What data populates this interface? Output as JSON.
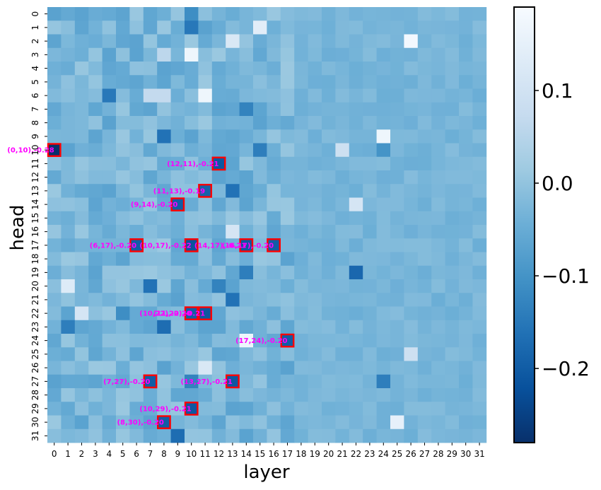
{
  "chart_data": {
    "type": "heatmap",
    "title": "",
    "xlabel": "layer",
    "ylabel": "head",
    "x_ticks": [
      "0",
      "1",
      "2",
      "3",
      "4",
      "5",
      "6",
      "7",
      "8",
      "9",
      "10",
      "11",
      "12",
      "13",
      "14",
      "15",
      "16",
      "17",
      "18",
      "19",
      "20",
      "21",
      "22",
      "23",
      "24",
      "25",
      "26",
      "27",
      "28",
      "29",
      "30",
      "31"
    ],
    "y_ticks": [
      "0",
      "1",
      "2",
      "3",
      "4",
      "5",
      "6",
      "7",
      "8",
      "9",
      "10",
      "11",
      "12",
      "13",
      "14",
      "15",
      "16",
      "17",
      "18",
      "19",
      "20",
      "21",
      "22",
      "23",
      "24",
      "25",
      "26",
      "27",
      "28",
      "29",
      "30",
      "31"
    ],
    "colormap": "Blues_r",
    "vmin": -0.28,
    "vmax": 0.19,
    "colorbar_ticks": [
      {
        "value": 0.1,
        "label": "0.1"
      },
      {
        "value": 0.0,
        "label": "0.0"
      },
      {
        "value": -0.1,
        "label": "−0.1"
      },
      {
        "value": -0.2,
        "label": "−0.2"
      }
    ],
    "base_value": -0.03,
    "highlight_color": "#ff0000",
    "annotation_color": "#ff00ff",
    "notable_cells": [
      {
        "layer": 10,
        "head": 3,
        "value": 0.17
      },
      {
        "layer": 26,
        "head": 2,
        "value": 0.18
      },
      {
        "layer": 11,
        "head": 6,
        "value": 0.17
      },
      {
        "layer": 24,
        "head": 9,
        "value": 0.17
      },
      {
        "layer": 14,
        "head": 24,
        "value": 0.17
      },
      {
        "layer": 25,
        "head": 30,
        "value": 0.15
      },
      {
        "layer": 15,
        "head": 1,
        "value": 0.14
      },
      {
        "layer": 13,
        "head": 2,
        "value": 0.12
      },
      {
        "layer": 1,
        "head": 20,
        "value": 0.13
      },
      {
        "layer": 2,
        "head": 22,
        "value": 0.11
      },
      {
        "layer": 22,
        "head": 14,
        "value": 0.11
      },
      {
        "layer": 26,
        "head": 25,
        "value": 0.09
      },
      {
        "layer": 11,
        "head": 26,
        "value": 0.12
      },
      {
        "layer": 13,
        "head": 16,
        "value": 0.11
      },
      {
        "layer": 21,
        "head": 10,
        "value": 0.09
      },
      {
        "layer": 7,
        "head": 6,
        "value": 0.07
      },
      {
        "layer": 8,
        "head": 6,
        "value": 0.07
      },
      {
        "layer": 8,
        "head": 3,
        "value": 0.06
      },
      {
        "layer": 10,
        "head": 1,
        "value": -0.15
      },
      {
        "layer": 10,
        "head": 0,
        "value": -0.11
      },
      {
        "layer": 4,
        "head": 6,
        "value": -0.15
      },
      {
        "layer": 8,
        "head": 9,
        "value": -0.16
      },
      {
        "layer": 7,
        "head": 20,
        "value": -0.16
      },
      {
        "layer": 8,
        "head": 23,
        "value": -0.17
      },
      {
        "layer": 9,
        "head": 31,
        "value": -0.17
      },
      {
        "layer": 22,
        "head": 19,
        "value": -0.18
      },
      {
        "layer": 13,
        "head": 13,
        "value": -0.16
      },
      {
        "layer": 13,
        "head": 21,
        "value": -0.16
      },
      {
        "layer": 15,
        "head": 10,
        "value": -0.14
      },
      {
        "layer": 1,
        "head": 23,
        "value": -0.14
      },
      {
        "layer": 24,
        "head": 27,
        "value": -0.14
      },
      {
        "layer": 14,
        "head": 19,
        "value": -0.14
      },
      {
        "layer": 12,
        "head": 20,
        "value": -0.13
      },
      {
        "layer": 14,
        "head": 7,
        "value": -0.13
      },
      {
        "layer": 10,
        "head": 27,
        "value": -0.13
      },
      {
        "layer": 5,
        "head": 22,
        "value": -0.11
      },
      {
        "layer": 24,
        "head": 10,
        "value": -0.1
      }
    ],
    "annotated_cells": [
      {
        "layer": 0,
        "head": 10,
        "value": -0.28,
        "label": "(0,10),-0.28"
      },
      {
        "layer": 12,
        "head": 11,
        "value": -0.21,
        "label": "(12,11),-0.21"
      },
      {
        "layer": 11,
        "head": 13,
        "value": -0.19,
        "label": "(11,13),-0.19"
      },
      {
        "layer": 9,
        "head": 14,
        "value": -0.2,
        "label": "(9,14),-0.20"
      },
      {
        "layer": 6,
        "head": 17,
        "value": -0.2,
        "label": "(6,17),-0.20"
      },
      {
        "layer": 10,
        "head": 17,
        "value": -0.22,
        "label": "(10,17),-0.22"
      },
      {
        "layer": 14,
        "head": 17,
        "value": -0.21,
        "label": "(14,17),-0.21"
      },
      {
        "layer": 16,
        "head": 17,
        "value": -0.2,
        "label": "(16,17),-0.20"
      },
      {
        "layer": 10,
        "head": 22,
        "value": -0.2,
        "label": "(10,22),-0.20"
      },
      {
        "layer": 11,
        "head": 22,
        "value": -0.21,
        "label": "(11,22),-0.21"
      },
      {
        "layer": 17,
        "head": 24,
        "value": -0.2,
        "label": "(17,24),-0.20"
      },
      {
        "layer": 7,
        "head": 27,
        "value": -0.2,
        "label": "(7,27),-0.20"
      },
      {
        "layer": 13,
        "head": 27,
        "value": -0.21,
        "label": "(13,27),-0.21"
      },
      {
        "layer": 10,
        "head": 29,
        "value": -0.21,
        "label": "(10,29),-0.21"
      },
      {
        "layer": 8,
        "head": 30,
        "value": -0.2,
        "label": "(8,30),-0.20"
      }
    ]
  }
}
